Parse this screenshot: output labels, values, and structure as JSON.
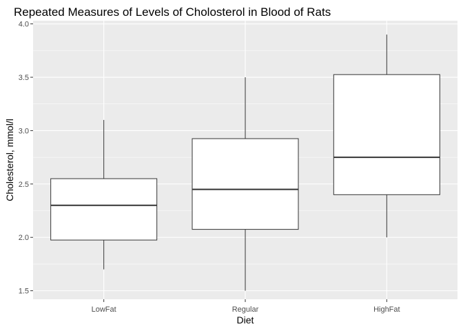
{
  "chart_data": {
    "type": "box",
    "title": "Repeated Measures of Levels of Cholosterol in Blood of Rats",
    "xlabel": "Diet",
    "ylabel": "Cholesterol, mmol/l",
    "categories": [
      "LowFat",
      "Regular",
      "HighFat"
    ],
    "ylim": [
      1.42,
      4.03
    ],
    "yticks": [
      1.5,
      2.0,
      2.5,
      3.0,
      3.5,
      4.0
    ],
    "ytick_labels": [
      "1.5",
      "2.0",
      "2.5",
      "3.0",
      "3.5",
      "4.0"
    ],
    "boxes": [
      {
        "category": "LowFat",
        "min": 1.7,
        "q1": 1.975,
        "median": 2.3,
        "q3": 2.55,
        "max": 3.1
      },
      {
        "category": "Regular",
        "min": 1.5,
        "q1": 2.075,
        "median": 2.45,
        "q3": 2.925,
        "max": 3.5
      },
      {
        "category": "HighFat",
        "min": 2.0,
        "q1": 2.4,
        "median": 2.75,
        "q3": 3.525,
        "max": 3.9
      }
    ],
    "grid": true,
    "colors": {
      "panel_background": "#ebebeb",
      "grid_major": "#ffffff",
      "box_fill": "#ffffff",
      "box_stroke": "#333333"
    }
  }
}
